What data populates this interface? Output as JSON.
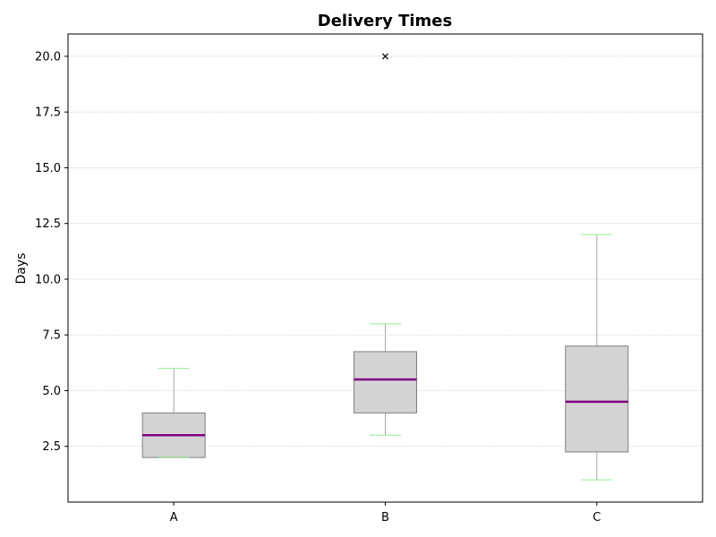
{
  "chart_data": {
    "type": "boxplot",
    "title": "Delivery Times",
    "xlabel": "",
    "ylabel": "Days",
    "ylim": [
      0,
      21
    ],
    "yticks": [
      2.5,
      5.0,
      7.5,
      10.0,
      12.5,
      15.0,
      17.5,
      20.0
    ],
    "ytick_labels": [
      "2.5",
      "5.0",
      "7.5",
      "10.0",
      "12.5",
      "15.0",
      "17.5",
      "20.0"
    ],
    "grid": "horizontal-dotted",
    "categories": [
      "A",
      "B",
      "C"
    ],
    "boxes": [
      {
        "category": "A",
        "whisker_low": 2.0,
        "q1": 2.0,
        "median": 3.0,
        "q3": 4.0,
        "whisker_high": 6.0,
        "outliers": []
      },
      {
        "category": "B",
        "whisker_low": 3.0,
        "q1": 4.0,
        "median": 5.5,
        "q3": 6.75,
        "whisker_high": 8.0,
        "outliers": [
          20.0
        ]
      },
      {
        "category": "C",
        "whisker_low": 1.0,
        "q1": 2.25,
        "median": 4.5,
        "q3": 7.0,
        "whisker_high": 12.0,
        "outliers": []
      }
    ],
    "colors": {
      "box_fill": "#d3d3d3",
      "box_edge": "#808080",
      "median": "#800080",
      "whisker": "#a9a9a9",
      "cap": "#90ee90",
      "outlier": "#000000",
      "grid": "#cccccc",
      "axes": "#000000"
    }
  }
}
